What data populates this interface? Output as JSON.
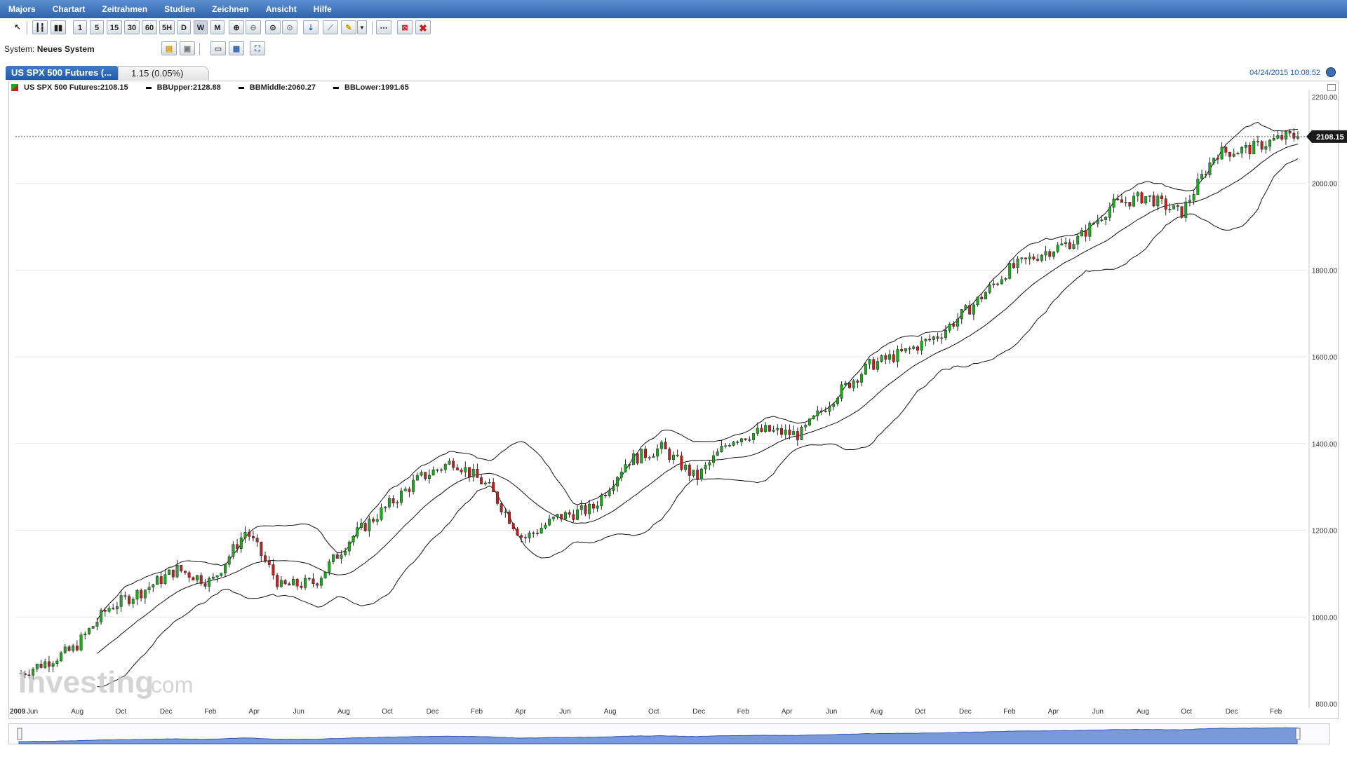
{
  "menu": [
    "Majors",
    "Chartart",
    "Zeitrahmen",
    "Studien",
    "Zeichnen",
    "Ansicht",
    "Hilfe"
  ],
  "toolbar": {
    "timeframes": [
      "1",
      "5",
      "15",
      "30",
      "60",
      "5H",
      "D",
      "W",
      "M"
    ]
  },
  "system": {
    "label": "System:",
    "value": "Neues System"
  },
  "tab": {
    "title": "US SPX 500 Futures (...",
    "change": "1.15 (0.05%)",
    "timestamp": "04/24/2015 10:08:52"
  },
  "legend": {
    "main": "US SPX 500 Futures:2108.15",
    "upper": "BBUpper:2128.88",
    "middle": "BBMiddle:2060.27",
    "lower": "BBLower:1991.65"
  },
  "price_tag": "2108.15",
  "watermark": {
    "brand": "Investing",
    "suffix": ".com"
  },
  "colors": {
    "up": "#22a722",
    "down": "#c52020",
    "band": "#111111",
    "grid": "#e4e4e4",
    "accent": "#2f64ad"
  },
  "chart_data": {
    "type": "candlestick",
    "series_name": "US SPX 500 Futures",
    "last": 2108.15,
    "ylim": [
      800,
      2200
    ],
    "yticks": [
      "800.00",
      "1000.00",
      "1200.00",
      "1400.00",
      "1600.00",
      "1800.00",
      "2000.00",
      "2200.00"
    ],
    "xtick_labels": [
      "2009",
      "Jun",
      "Aug",
      "Oct",
      "Dec",
      "Feb",
      "Apr",
      "Jun",
      "Aug",
      "Oct",
      "Dec",
      "Feb",
      "Apr",
      "Jun",
      "Aug",
      "Oct",
      "Dec",
      "Feb",
      "Apr",
      "Jun",
      "Aug",
      "Oct",
      "Dec",
      "Feb",
      "Apr",
      "Jun",
      "Aug",
      "Oct",
      "Dec",
      "Feb"
    ],
    "approx_close_path": [
      {
        "x": "2009-03",
        "y": 870
      },
      {
        "x": "2009-06",
        "y": 925
      },
      {
        "x": "2009-08",
        "y": 1020
      },
      {
        "x": "2009-10",
        "y": 1060
      },
      {
        "x": "2009-12",
        "y": 1110
      },
      {
        "x": "2010-02",
        "y": 1080
      },
      {
        "x": "2010-04",
        "y": 1200
      },
      {
        "x": "2010-06",
        "y": 1070
      },
      {
        "x": "2010-08",
        "y": 1080
      },
      {
        "x": "2010-10",
        "y": 1180
      },
      {
        "x": "2010-12",
        "y": 1250
      },
      {
        "x": "2011-02",
        "y": 1320
      },
      {
        "x": "2011-04",
        "y": 1360
      },
      {
        "x": "2011-06",
        "y": 1300
      },
      {
        "x": "2011-08",
        "y": 1180
      },
      {
        "x": "2011-10",
        "y": 1230
      },
      {
        "x": "2011-12",
        "y": 1250
      },
      {
        "x": "2012-02",
        "y": 1360
      },
      {
        "x": "2012-04",
        "y": 1390
      },
      {
        "x": "2012-06",
        "y": 1320
      },
      {
        "x": "2012-08",
        "y": 1410
      },
      {
        "x": "2012-10",
        "y": 1430
      },
      {
        "x": "2012-12",
        "y": 1420
      },
      {
        "x": "2013-02",
        "y": 1510
      },
      {
        "x": "2013-04",
        "y": 1580
      },
      {
        "x": "2013-06",
        "y": 1610
      },
      {
        "x": "2013-08",
        "y": 1650
      },
      {
        "x": "2013-10",
        "y": 1720
      },
      {
        "x": "2013-12",
        "y": 1800
      },
      {
        "x": "2014-02",
        "y": 1840
      },
      {
        "x": "2014-04",
        "y": 1870
      },
      {
        "x": "2014-06",
        "y": 1950
      },
      {
        "x": "2014-08",
        "y": 1970
      },
      {
        "x": "2014-10",
        "y": 1930
      },
      {
        "x": "2014-12",
        "y": 2070
      },
      {
        "x": "2015-02",
        "y": 2080
      },
      {
        "x": "2015-04",
        "y": 2108
      }
    ],
    "indicators": [
      {
        "name": "BBUpper",
        "last": 2128.88
      },
      {
        "name": "BBMiddle",
        "last": 2060.27
      },
      {
        "name": "BBLower",
        "last": 1991.65
      }
    ],
    "grid": true,
    "legend": "top-left"
  }
}
